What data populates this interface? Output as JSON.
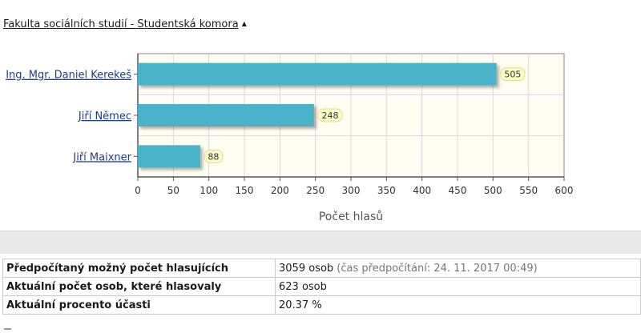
{
  "section": {
    "title": "Fakulta sociálních studií - Studentská komora",
    "caret_icon": "caret-up-icon"
  },
  "chart_data": {
    "type": "bar",
    "orientation": "horizontal",
    "categories": [
      "Ing. Mgr. Daniel Kerekeš",
      "Jiří Němec",
      "Jiří Maixner"
    ],
    "values": [
      505,
      248,
      88
    ],
    "data_labels": [
      "505",
      "248",
      "88"
    ],
    "xlabel": "Počet hlasů",
    "ylabel": "",
    "xlim": [
      0,
      600
    ],
    "xticks": [
      0,
      50,
      100,
      150,
      200,
      250,
      300,
      350,
      400,
      450,
      500,
      550,
      600
    ],
    "grid": true,
    "colors": {
      "bar": "#4bb3c9",
      "plot_bg": "#fffdf2",
      "grid": "#d9d9d9",
      "frame": "#888888",
      "label_bg": "#fdfbc9"
    }
  },
  "info": {
    "rows": [
      {
        "label": "Předpočítaný možný počet hlasujících",
        "value": "3059 osob",
        "note": " (čas předpočítání: 24. 11. 2017 00:49)"
      },
      {
        "label": "Aktuální počet osob, které hlasovaly",
        "value": "623 osob",
        "note": ""
      },
      {
        "label": "Aktuální procento účasti",
        "value": "20.37 %",
        "note": ""
      }
    ]
  }
}
